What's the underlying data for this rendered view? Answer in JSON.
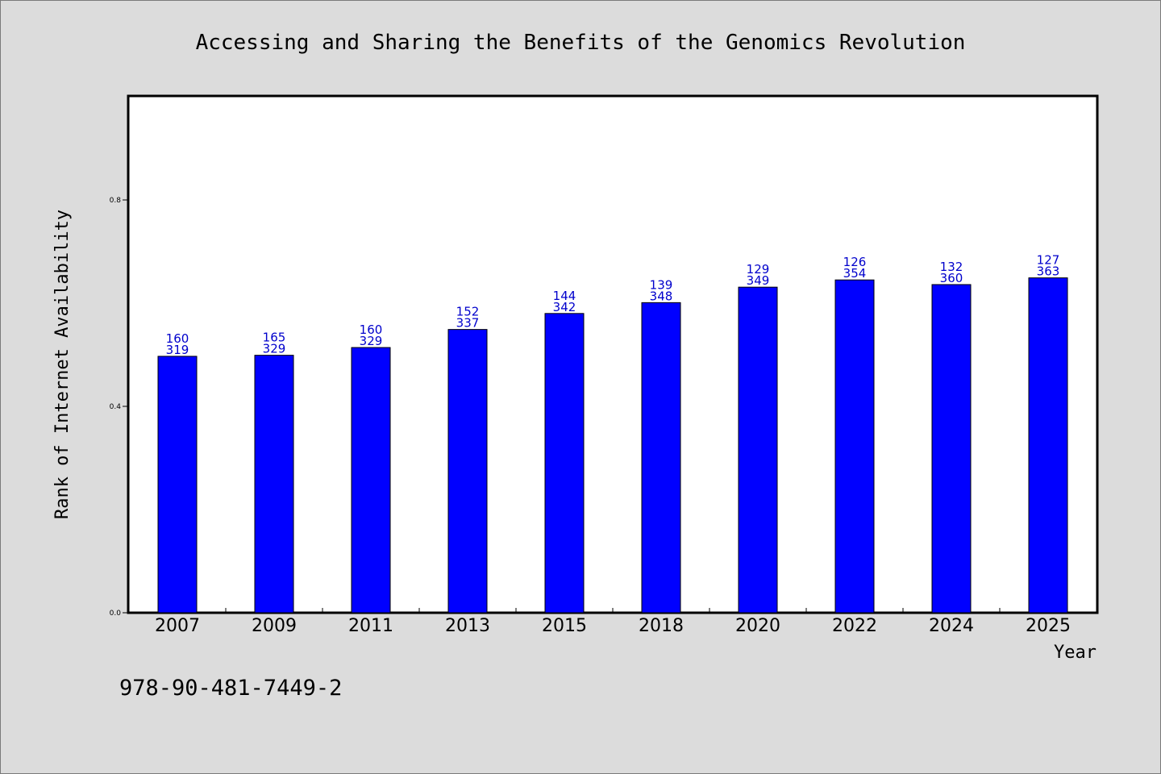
{
  "chart_data": {
    "type": "bar",
    "title": "Accessing and Sharing the Benefits of the Genomics Revolution",
    "xlabel": "Year",
    "ylabel": "Rank of Internet Availability",
    "categories": [
      "2007",
      "2009",
      "2011",
      "2013",
      "2015",
      "2018",
      "2020",
      "2022",
      "2024",
      "2025"
    ],
    "values": [
      0.497,
      0.499,
      0.514,
      0.549,
      0.58,
      0.601,
      0.631,
      0.645,
      0.636,
      0.649
    ],
    "label_top": [
      "160",
      "165",
      "160",
      "152",
      "144",
      "139",
      "129",
      "126",
      "132",
      "127"
    ],
    "label_bottom": [
      "319",
      "329",
      "329",
      "337",
      "342",
      "348",
      "349",
      "354",
      "360",
      "363"
    ],
    "yticks": [
      "0.0",
      "0.4",
      "0.8"
    ],
    "ylim": [
      0,
      1
    ],
    "bar_color": "#0000ff",
    "label_color": "#0000cc",
    "grid": false,
    "legend": "none"
  },
  "footer": {
    "isbn": "978-90-481-7449-2"
  }
}
